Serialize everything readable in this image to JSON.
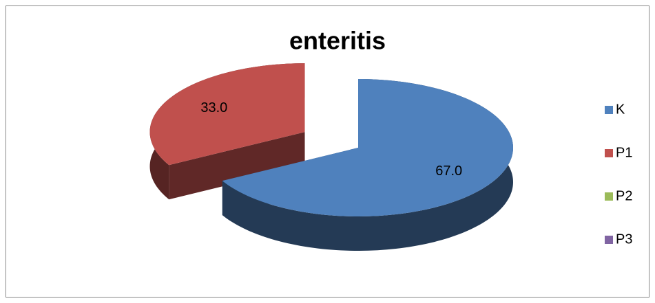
{
  "chart_data": {
    "type": "pie",
    "title": "enteritis",
    "categories": [
      "K",
      "P1",
      "P2",
      "P3"
    ],
    "values": [
      67,
      33,
      0,
      0
    ],
    "value_labels": [
      "67.0",
      "33.0",
      null,
      null
    ],
    "colors": [
      "#4f81bd",
      "#c0504d",
      "#9bbb59",
      "#8064a2"
    ],
    "exploded": [
      false,
      true,
      false,
      false
    ],
    "legend": "right"
  }
}
